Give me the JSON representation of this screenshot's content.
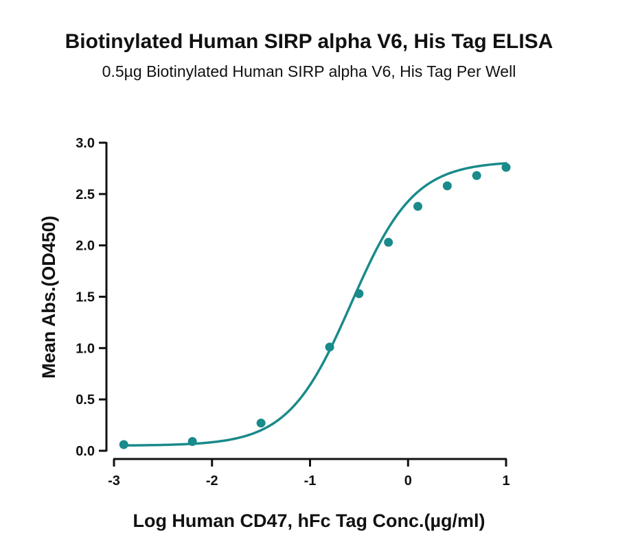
{
  "chart_data": {
    "type": "scatter",
    "title": "Biotinylated Human SIRP alpha V6, His Tag ELISA",
    "subtitle": "0.5µg Biotinylated Human SIRP alpha V6, His Tag Per Well",
    "xlabel": "Log Human CD47, hFc Tag Conc.(µg/ml)",
    "ylabel": "Mean Abs.(OD450)",
    "xlim": [
      -3,
      1
    ],
    "ylim": [
      0,
      3
    ],
    "x_ticks": [
      "-3",
      "-2",
      "-1",
      "0",
      "1"
    ],
    "y_ticks": [
      "0.0",
      "0.5",
      "1.0",
      "1.5",
      "2.0",
      "2.5",
      "3.0"
    ],
    "grid": false,
    "series": [
      {
        "points": [
          {
            "x": -2.9,
            "y": 0.06
          },
          {
            "x": -2.2,
            "y": 0.09
          },
          {
            "x": -1.5,
            "y": 0.27
          },
          {
            "x": -0.8,
            "y": 1.01
          },
          {
            "x": -0.5,
            "y": 1.53
          },
          {
            "x": -0.2,
            "y": 2.03
          },
          {
            "x": 0.1,
            "y": 2.38
          },
          {
            "x": 0.4,
            "y": 2.58
          },
          {
            "x": 0.7,
            "y": 2.68
          },
          {
            "x": 1.0,
            "y": 2.76
          }
        ],
        "fit": {
          "model": "4PL",
          "bottom": 0.05,
          "top": 2.82,
          "log_ec50": -0.58,
          "hill_slope": 1.35
        }
      }
    ],
    "colors": {
      "series": "#1a8a8a",
      "axis": "#111111"
    }
  }
}
